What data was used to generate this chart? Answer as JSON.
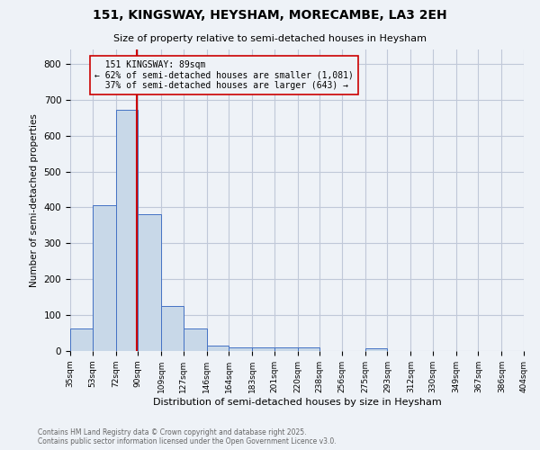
{
  "title_line1": "151, KINGSWAY, HEYSHAM, MORECAMBE, LA3 2EH",
  "title_line2": "Size of property relative to semi-detached houses in Heysham",
  "xlabel": "Distribution of semi-detached houses by size in Heysham",
  "ylabel": "Number of semi-detached properties",
  "bins": [
    35,
    53,
    72,
    90,
    109,
    127,
    146,
    164,
    183,
    201,
    220,
    238,
    256,
    275,
    293,
    312,
    330,
    349,
    367,
    386,
    404
  ],
  "counts": [
    63,
    407,
    671,
    381,
    126,
    63,
    15,
    11,
    10,
    10,
    9,
    0,
    0,
    8,
    0,
    0,
    0,
    0,
    0,
    0
  ],
  "bar_color": "#c8d8e8",
  "bar_edge_color": "#4472c4",
  "subject_value": 89,
  "subject_label": "151 KINGSWAY: 89sqm",
  "pct_smaller": 62,
  "n_smaller": 1081,
  "pct_larger": 37,
  "n_larger": 643,
  "vline_color": "#cc0000",
  "annotation_box_color": "#cc0000",
  "ylim": [
    0,
    840
  ],
  "yticks": [
    0,
    100,
    200,
    300,
    400,
    500,
    600,
    700,
    800
  ],
  "grid_color": "#c0c8d8",
  "footer_line1": "Contains HM Land Registry data © Crown copyright and database right 2025.",
  "footer_line2": "Contains public sector information licensed under the Open Government Licence v3.0.",
  "bg_color": "#eef2f7"
}
